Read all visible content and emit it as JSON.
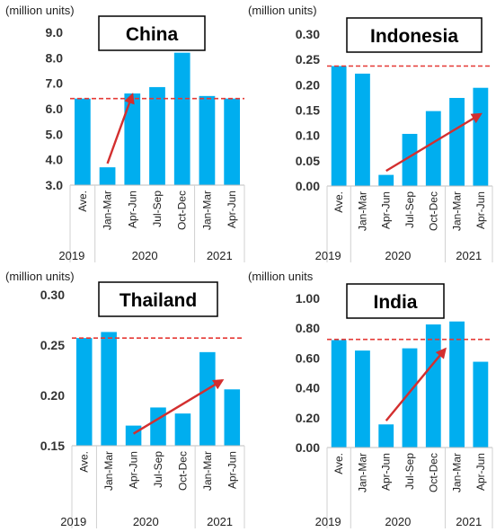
{
  "chart_data": [
    {
      "type": "bar",
      "title": "China",
      "unit_label": "(million units)",
      "categories": [
        "Ave.",
        "Jan-Mar",
        "Apr-Jun",
        "Jul-Sep",
        "Oct-Dec",
        "Jan-Mar",
        "Apr-Jun"
      ],
      "years": [
        "2019",
        "2020",
        "2021"
      ],
      "values": [
        6.4,
        3.7,
        6.6,
        6.85,
        8.2,
        6.5,
        6.4
      ],
      "ylim": [
        3.0,
        9.0
      ],
      "yticks": [
        "3.0",
        "4.0",
        "5.0",
        "6.0",
        "7.0",
        "8.0",
        "9.0"
      ],
      "reference_line": 6.4,
      "trend_arrow": {
        "from": [
          1,
          3.85
        ],
        "to": [
          2,
          6.55
        ]
      },
      "bar_color": "#00aeef",
      "reference_color": "#e53935",
      "arrow_color": "#d32f2f"
    },
    {
      "type": "bar",
      "title": "Indonesia",
      "unit_label": "(million units)",
      "categories": [
        "Ave.",
        "Jan-Mar",
        "Apr-Jun",
        "Jul-Sep",
        "Oct-Dec",
        "Jan-Mar",
        "Apr-Jun"
      ],
      "years": [
        "2019",
        "2020",
        "2021"
      ],
      "values": [
        0.237,
        0.222,
        0.022,
        0.103,
        0.148,
        0.174,
        0.194
      ],
      "ylim": [
        0.0,
        0.3
      ],
      "yticks": [
        "0.00",
        "0.05",
        "0.10",
        "0.15",
        "0.20",
        "0.25",
        "0.30"
      ],
      "reference_line": 0.237,
      "trend_arrow": {
        "from": [
          2,
          0.03
        ],
        "to": [
          6,
          0.142
        ]
      },
      "bar_color": "#00aeef",
      "reference_color": "#e53935",
      "arrow_color": "#d32f2f"
    },
    {
      "type": "bar",
      "title": "Thailand",
      "unit_label": "(million units)",
      "categories": [
        "Ave.",
        "Jan-Mar",
        "Apr-Jun",
        "Jul-Sep",
        "Oct-Dec",
        "Jan-Mar",
        "Apr-Jun"
      ],
      "years": [
        "2019",
        "2020",
        "2021"
      ],
      "values": [
        0.257,
        0.263,
        0.17,
        0.188,
        0.182,
        0.243,
        0.206
      ],
      "ylim": [
        0.15,
        0.3
      ],
      "yticks": [
        "0.15",
        "0.20",
        "0.25",
        "0.30"
      ],
      "reference_line": 0.257,
      "trend_arrow": {
        "from": [
          2,
          0.162
        ],
        "to": [
          5.6,
          0.215
        ]
      },
      "bar_color": "#00aeef",
      "reference_color": "#e53935",
      "arrow_color": "#d32f2f"
    },
    {
      "type": "bar",
      "title": "India",
      "unit_label": "(million units",
      "categories": [
        "Ave.",
        "Jan-Mar",
        "Apr-Jun",
        "Jul-Sep",
        "Oct-Dec",
        "Jan-Mar",
        "Apr-Jun"
      ],
      "years": [
        "2019",
        "2020",
        "2021"
      ],
      "values": [
        0.72,
        0.65,
        0.155,
        0.665,
        0.825,
        0.845,
        0.575
      ],
      "ylim": [
        0.0,
        1.0
      ],
      "yticks": [
        "0.00",
        "0.20",
        "0.40",
        "0.60",
        "0.80",
        "1.00"
      ],
      "reference_line": 0.725,
      "trend_arrow": {
        "from": [
          2,
          0.18
        ],
        "to": [
          4.5,
          0.66
        ]
      },
      "bar_color": "#00aeef",
      "reference_color": "#e53935",
      "arrow_color": "#d32f2f"
    }
  ]
}
